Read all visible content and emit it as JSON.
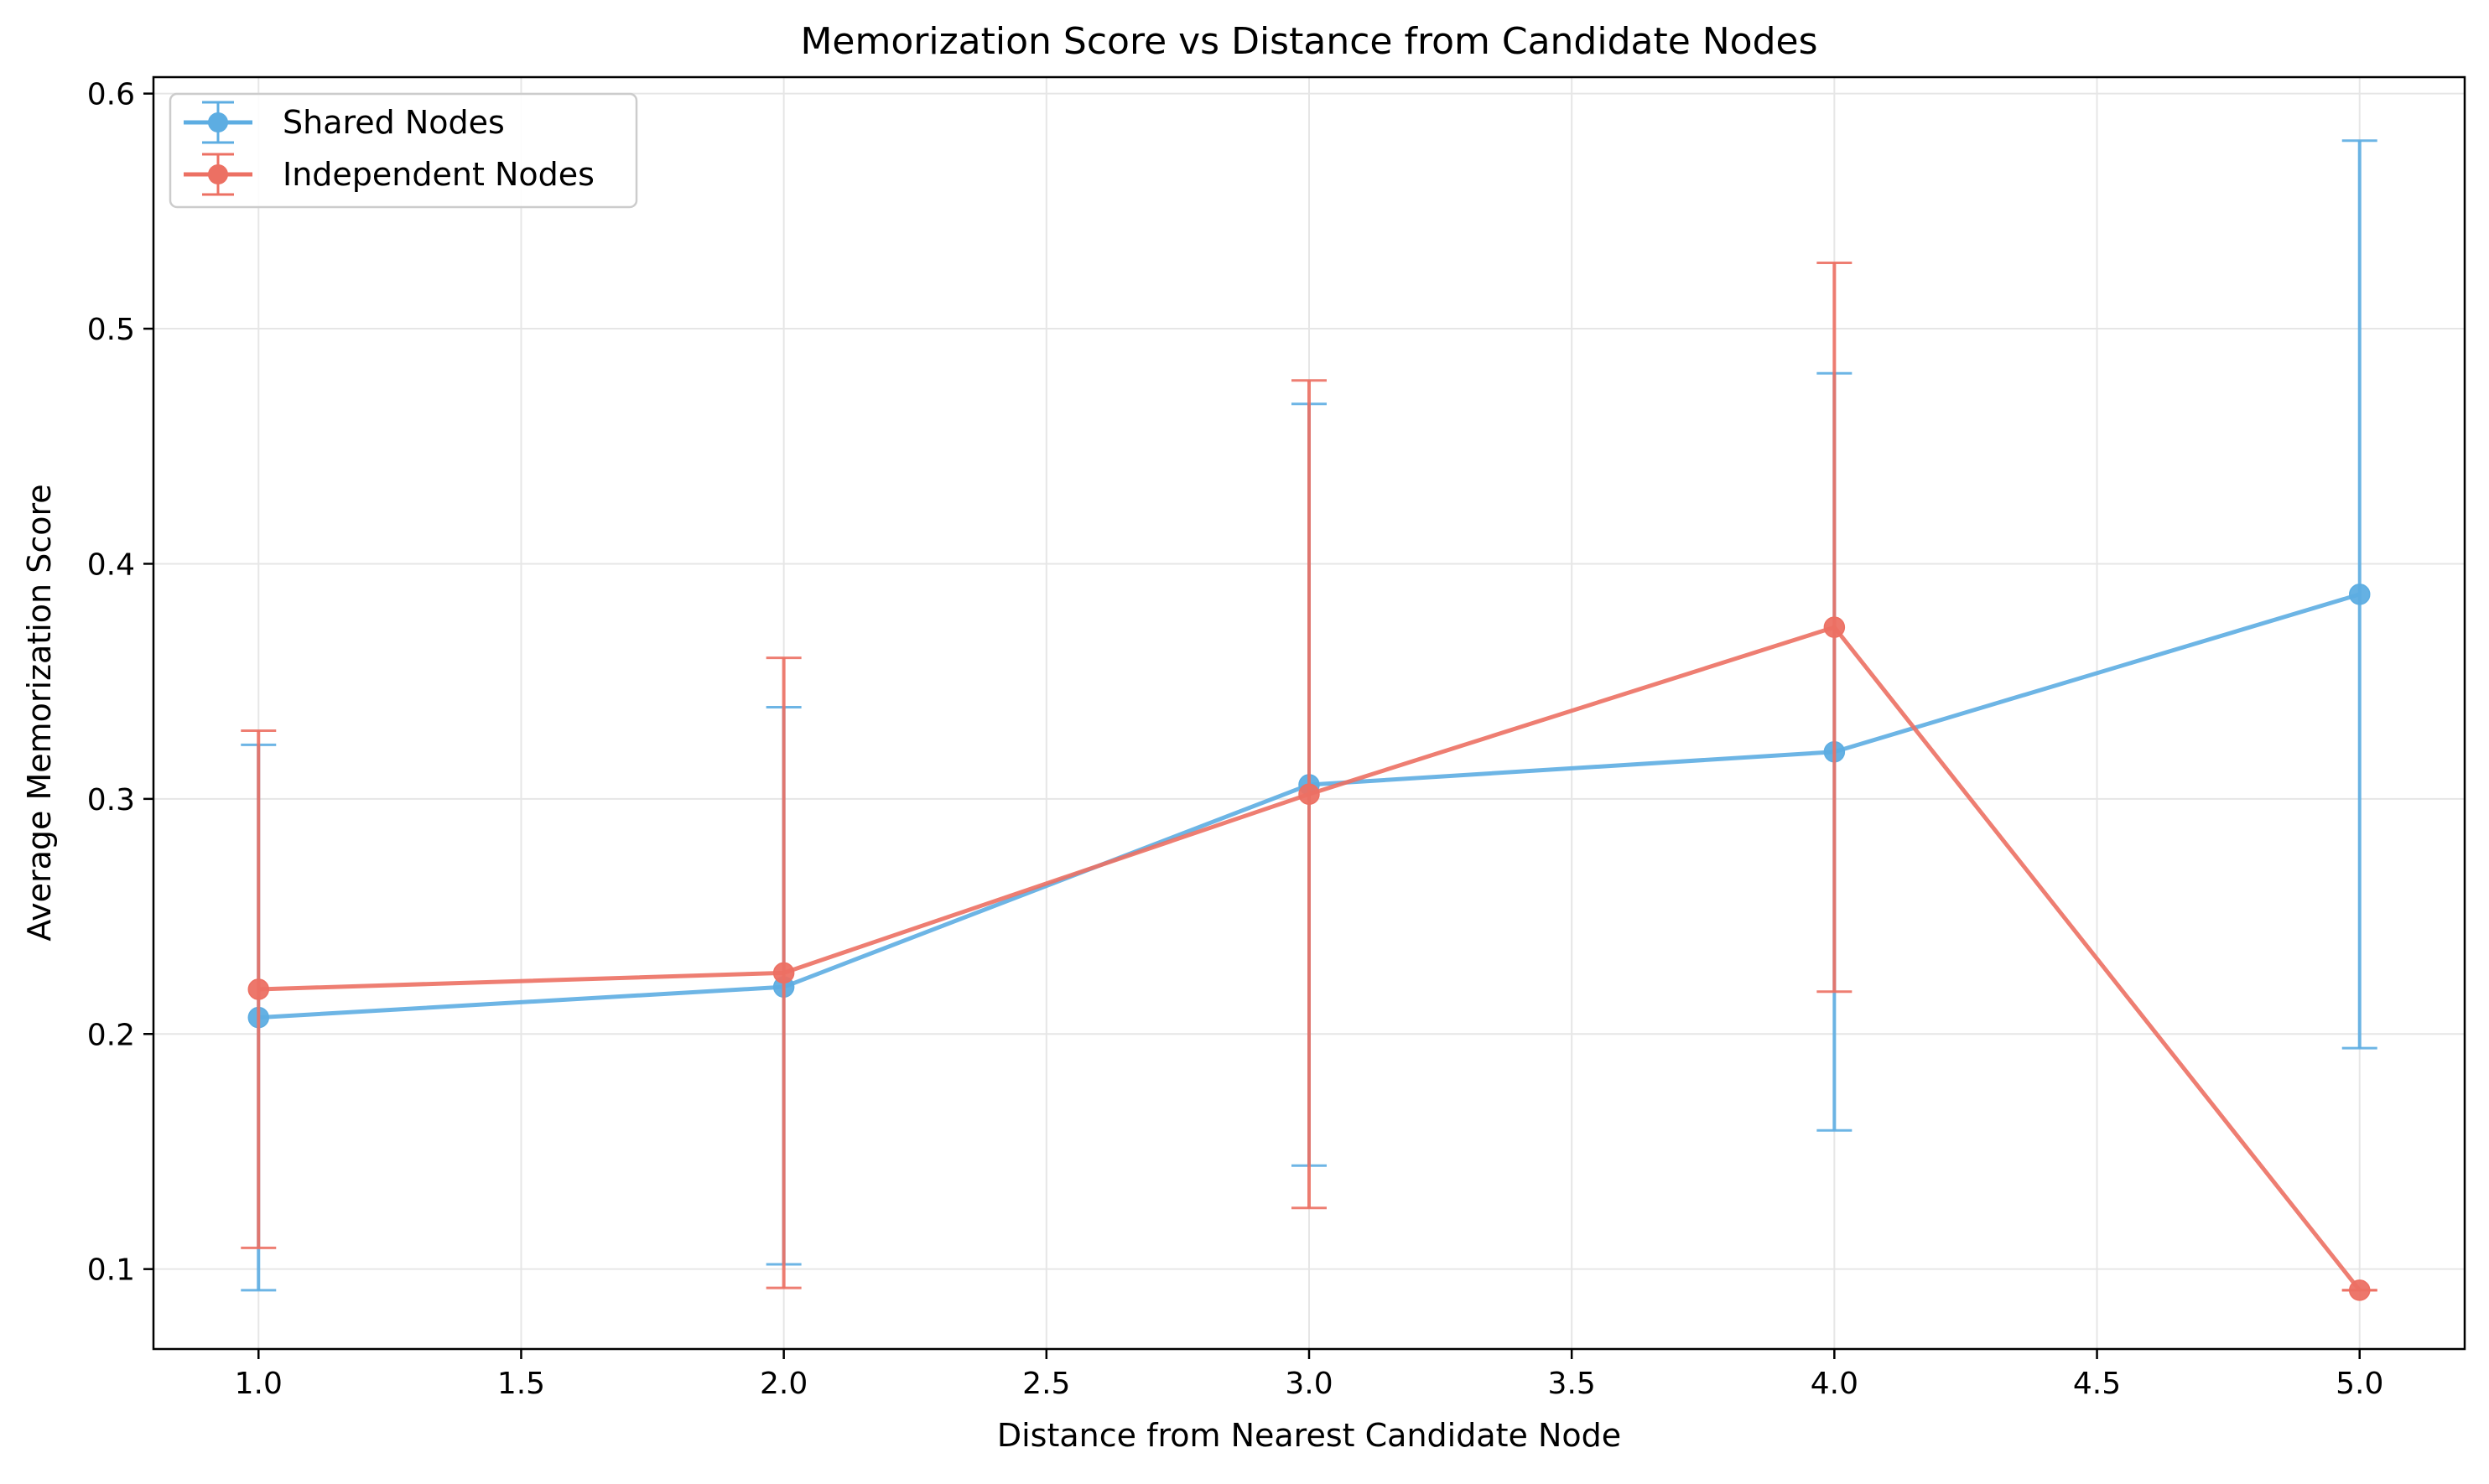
{
  "chart_data": {
    "type": "line",
    "title": "Memorization Score vs Distance from Candidate Nodes",
    "xlabel": "Distance from Nearest Candidate Node",
    "ylabel": "Average Memorization Score",
    "xlim": [
      0.8,
      5.2
    ],
    "ylim": [
      0.066,
      0.607
    ],
    "x_ticks": [
      1.0,
      1.5,
      2.0,
      2.5,
      3.0,
      3.5,
      4.0,
      4.5,
      5.0
    ],
    "x_tick_labels": [
      "1.0",
      "1.5",
      "2.0",
      "2.5",
      "3.0",
      "3.5",
      "4.0",
      "4.5",
      "5.0"
    ],
    "y_ticks": [
      0.1,
      0.2,
      0.3,
      0.4,
      0.5,
      0.6
    ],
    "y_tick_labels": [
      "0.1",
      "0.2",
      "0.3",
      "0.4",
      "0.5",
      "0.6"
    ],
    "grid": true,
    "legend": "top-left",
    "series": [
      {
        "name": "Shared Nodes",
        "color": "#5DADE2",
        "x": [
          1,
          2,
          3,
          4,
          5
        ],
        "y": [
          0.207,
          0.22,
          0.306,
          0.32,
          0.387
        ],
        "err_low": [
          0.091,
          0.102,
          0.144,
          0.159,
          0.194
        ],
        "err_high": [
          0.323,
          0.339,
          0.468,
          0.481,
          0.58
        ]
      },
      {
        "name": "Independent Nodes",
        "color": "#EC7063",
        "x": [
          1,
          2,
          3,
          4,
          5
        ],
        "y": [
          0.219,
          0.226,
          0.302,
          0.373,
          0.091
        ],
        "err_low": [
          0.109,
          0.092,
          0.126,
          0.218,
          0.091
        ],
        "err_high": [
          0.329,
          0.36,
          0.478,
          0.528,
          0.091
        ]
      }
    ]
  }
}
